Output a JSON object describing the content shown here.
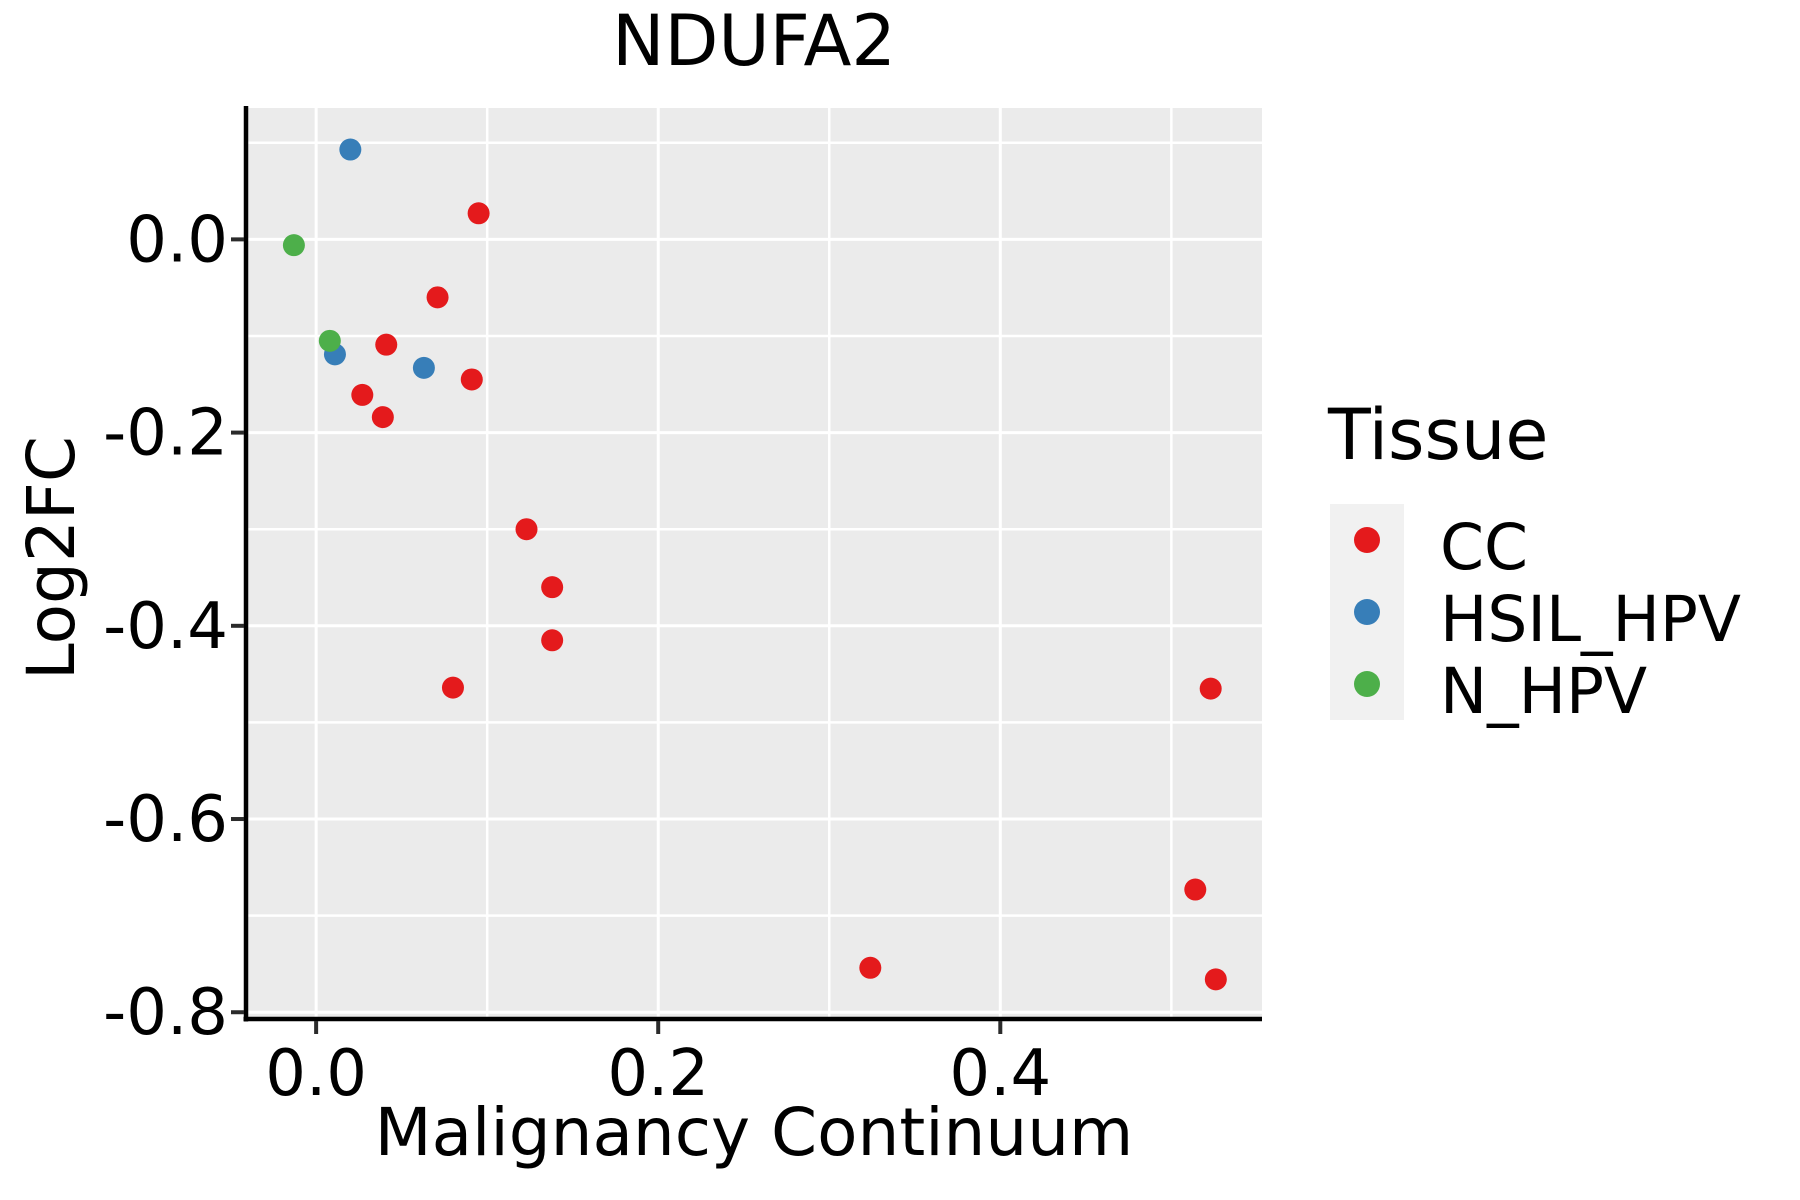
{
  "chart_data": {
    "type": "scatter",
    "title": "NDUFA2",
    "xlabel": "Malignancy Continuum",
    "ylabel": "Log2FC",
    "legend_title": "Tissue",
    "xlim": [
      -0.041,
      0.553
    ],
    "ylim": [
      -0.807,
      0.136
    ],
    "x_ticks": [
      0.0,
      0.2,
      0.4
    ],
    "y_ticks": [
      0.0,
      -0.2,
      -0.4,
      -0.6,
      -0.8
    ],
    "x_minor_ticks": [
      0.1,
      0.3,
      0.5
    ],
    "y_minor_ticks": [
      0.1,
      -0.1,
      -0.3,
      -0.5,
      -0.7
    ],
    "grid": true,
    "legend_position": "right",
    "panel_background": "#EBEBEB",
    "gridline_color": "#FFFFFF",
    "axis_line_color": "#000000",
    "legend_key_background": "#F1F1F1",
    "series": [
      {
        "name": "CC",
        "color": "#E41A1C",
        "points": [
          [
            0.095,
            0.027
          ],
          [
            0.071,
            -0.06
          ],
          [
            0.041,
            -0.109
          ],
          [
            0.091,
            -0.145
          ],
          [
            0.027,
            -0.161
          ],
          [
            0.039,
            -0.184
          ],
          [
            0.123,
            -0.3
          ],
          [
            0.138,
            -0.36
          ],
          [
            0.138,
            -0.415
          ],
          [
            0.08,
            -0.464
          ],
          [
            0.324,
            -0.754
          ],
          [
            0.523,
            -0.465
          ],
          [
            0.514,
            -0.673
          ],
          [
            0.526,
            -0.766
          ]
        ]
      },
      {
        "name": "HSIL_HPV",
        "color": "#377EB8",
        "points": [
          [
            0.02,
            0.093
          ],
          [
            0.011,
            -0.119
          ],
          [
            0.063,
            -0.133
          ]
        ]
      },
      {
        "name": "N_HPV",
        "color": "#4DAF4A",
        "points": [
          [
            -0.013,
            -0.006
          ],
          [
            0.008,
            -0.105
          ]
        ]
      }
    ]
  }
}
